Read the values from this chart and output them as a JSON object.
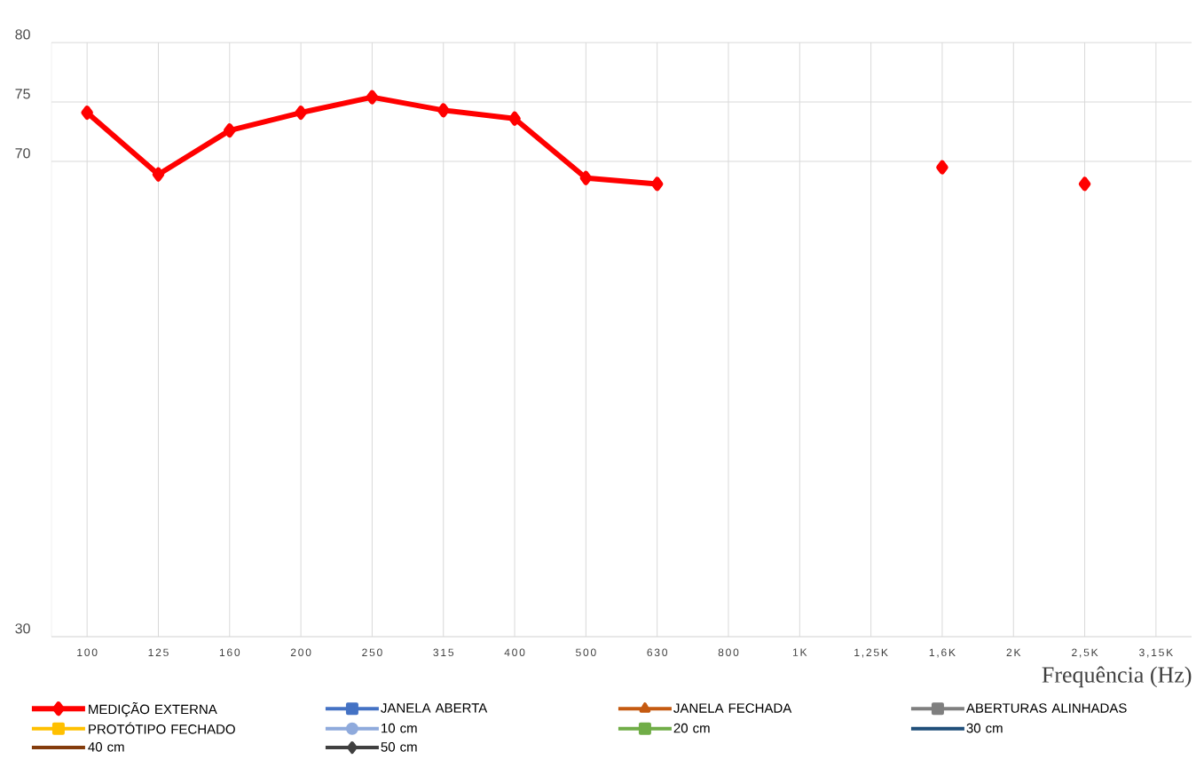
{
  "chart_data": {
    "type": "line",
    "xlabel": "Frequência (Hz)",
    "categories": [
      "100",
      "125",
      "160",
      "200",
      "250",
      "315",
      "400",
      "500",
      "630",
      "800",
      "1K",
      "1,25K",
      "1,6K",
      "2K",
      "2,5K",
      "3,15K"
    ],
    "ylim": [
      30,
      80
    ],
    "yticks": [
      30,
      70,
      75,
      80
    ],
    "grid": true,
    "legend": "bottom",
    "series": [
      {
        "name": "MEDIÇÃO EXTERNA",
        "color": "#ff0000",
        "marker": "diamond",
        "values": [
          74.1,
          68.9,
          72.6,
          74.1,
          75.4,
          74.3,
          73.6,
          68.6,
          68.1,
          null,
          null,
          null,
          69.5,
          null,
          68.1,
          null
        ]
      },
      {
        "name": "JANELA ABERTA",
        "color": "#4472c4",
        "marker": "square",
        "values": [
          null,
          null,
          null,
          null,
          null,
          null,
          null,
          null,
          null,
          null,
          null,
          null,
          null,
          null,
          null,
          null
        ]
      },
      {
        "name": "JANELA FECHADA",
        "color": "#c55a11",
        "marker": "triangle",
        "values": [
          null,
          null,
          null,
          null,
          null,
          null,
          null,
          null,
          null,
          null,
          null,
          null,
          null,
          null,
          null,
          null
        ]
      },
      {
        "name": "ABERTURAS ALINHADAS",
        "color": "#7f7f7f",
        "marker": "square",
        "values": [
          null,
          null,
          null,
          null,
          null,
          null,
          null,
          null,
          null,
          null,
          null,
          null,
          null,
          null,
          null,
          null
        ]
      },
      {
        "name": "PROTÓTIPO FECHADO",
        "color": "#ffc000",
        "marker": "square",
        "values": [
          null,
          null,
          null,
          null,
          null,
          null,
          null,
          null,
          null,
          null,
          null,
          null,
          null,
          null,
          null,
          null
        ]
      },
      {
        "name": "10 cm",
        "color": "#8faadc",
        "marker": "circle",
        "values": [
          null,
          null,
          null,
          null,
          null,
          null,
          null,
          null,
          null,
          null,
          null,
          null,
          null,
          null,
          null,
          null
        ]
      },
      {
        "name": "20 cm",
        "color": "#70ad47",
        "marker": "square",
        "values": [
          null,
          null,
          null,
          null,
          null,
          null,
          null,
          null,
          null,
          null,
          null,
          null,
          null,
          null,
          null,
          null
        ]
      },
      {
        "name": "30 cm",
        "color": "#1f4e79",
        "marker": "none",
        "values": [
          null,
          null,
          null,
          null,
          null,
          null,
          null,
          null,
          null,
          null,
          null,
          null,
          null,
          null,
          null,
          null
        ]
      },
      {
        "name": "40 cm",
        "color": "#843c0c",
        "marker": "none",
        "values": [
          null,
          null,
          null,
          null,
          null,
          null,
          null,
          null,
          null,
          null,
          null,
          null,
          null,
          null,
          null,
          null
        ]
      },
      {
        "name": "50 cm",
        "color": "#404040",
        "marker": "diamond",
        "values": [
          null,
          null,
          null,
          null,
          null,
          null,
          null,
          null,
          null,
          null,
          null,
          null,
          null,
          null,
          null,
          null
        ]
      }
    ]
  }
}
